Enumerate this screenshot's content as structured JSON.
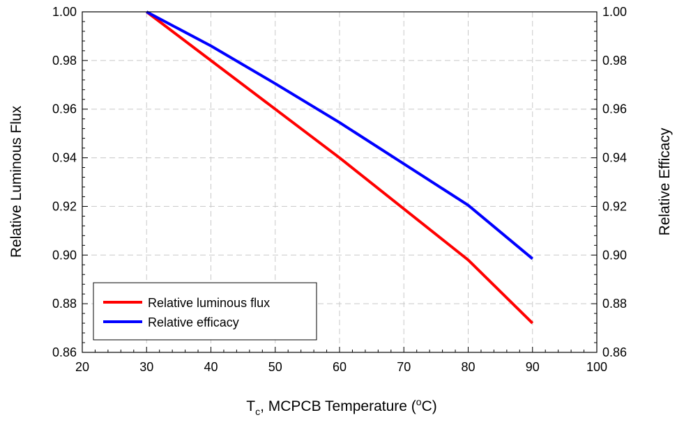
{
  "chart_data": {
    "type": "line",
    "xlabel_main": "T",
    "xlabel_sub": "c",
    "xlabel_rest": ",  MCPCB Temperature  (",
    "xlabel_sup": "o",
    "xlabel_end": "C)",
    "ylabel_left": "Relative Luminous Flux",
    "ylabel_right": "Relative Efficacy",
    "xlim": [
      20,
      100
    ],
    "ylim": [
      0.86,
      1.0
    ],
    "y2lim": [
      0.86,
      1.0
    ],
    "x_ticks": [
      "20",
      "30",
      "40",
      "50",
      "60",
      "70",
      "80",
      "90",
      "100"
    ],
    "y_ticks": [
      "0.86",
      "0.88",
      "0.90",
      "0.92",
      "0.94",
      "0.96",
      "0.98",
      "1.00"
    ],
    "y2_ticks": [
      "0.86",
      "0.88",
      "0.90",
      "0.92",
      "0.94",
      "0.96",
      "0.98",
      "1.00"
    ],
    "grid": true,
    "legend_position": "bottom-left",
    "series": [
      {
        "name": "Relative luminous flux",
        "color": "#ff0000",
        "axis": "left",
        "x": [
          30,
          40,
          50,
          60,
          70,
          80,
          90
        ],
        "y": [
          1.0,
          0.98,
          0.96,
          0.94,
          0.919,
          0.898,
          0.872
        ]
      },
      {
        "name": "Relative efficacy",
        "color": "#0000ff",
        "axis": "right",
        "x": [
          30,
          40,
          50,
          60,
          70,
          80,
          90
        ],
        "y": [
          1.0,
          0.986,
          0.9705,
          0.9545,
          0.9375,
          0.9205,
          0.8985
        ]
      }
    ]
  }
}
